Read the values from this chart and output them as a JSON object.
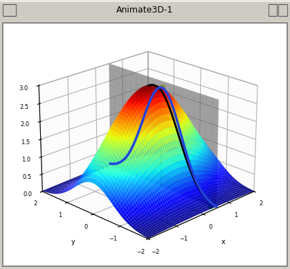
{
  "title": "Animate3D-1",
  "window_bg": "#d4d0c8",
  "plot_bg": "#ffffff",
  "inner_bg": "#ffffff",
  "xlim": [
    -2,
    2
  ],
  "ylim": [
    -2,
    2
  ],
  "zlim": [
    0,
    3
  ],
  "xlabel": "x",
  "ylabel": "y",
  "z_ticks": [
    0.0,
    0.5,
    1.0,
    1.5,
    2.0,
    2.5,
    3.0
  ],
  "x_ticks": [
    -2,
    -1,
    0,
    1,
    2
  ],
  "y_ticks": [
    -2,
    -1,
    0,
    1,
    2
  ],
  "surface_alpha": 0.97,
  "plane_color": "#cccccc",
  "plane_alpha": 0.55,
  "plane_x": 0.5,
  "curve_color_blue": "#2244dd",
  "curve_color_black": "#000000",
  "point_color_green": "#00cc00",
  "point_color_yellow": "#cccc00",
  "elev": 22,
  "azim": -135,
  "figsize": [
    4.19,
    3.88
  ],
  "dpi": 100
}
